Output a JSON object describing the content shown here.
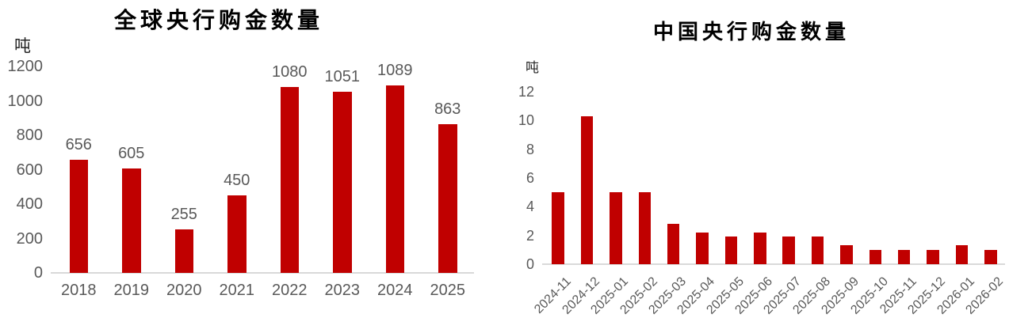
{
  "figure": {
    "background": "#ffffff",
    "bar_color": "#c00000",
    "axis_text_color": "#595959",
    "axis_line_color": "#d9d9d9"
  },
  "chart_data": [
    {
      "type": "bar",
      "title": "全球央行购金数量",
      "ylabel": "吨",
      "xlabel": "",
      "categories": [
        "2018",
        "2019",
        "2020",
        "2021",
        "2022",
        "2023",
        "2024",
        "2025"
      ],
      "values": [
        656,
        605,
        255,
        450,
        1080,
        1051,
        1089,
        863
      ],
      "ylim": [
        0,
        1200
      ],
      "yticks": [
        0,
        200,
        400,
        600,
        800,
        1000,
        1200
      ],
      "grid": false,
      "legend": "none",
      "bar_color": "#c00000",
      "show_value_labels": true,
      "x_label_rotation": 0
    },
    {
      "type": "bar",
      "title": "中国央行购金数量",
      "ylabel": "吨",
      "xlabel": "",
      "categories": [
        "2024-11",
        "2024-12",
        "2025-01",
        "2025-02",
        "2025-03",
        "2025-04",
        "2025-05",
        "2025-06",
        "2025-07",
        "2025-08",
        "2025-09",
        "2025-10",
        "2025-11",
        "2025-12",
        "2026-01",
        "2026-02"
      ],
      "values": [
        5.0,
        10.3,
        5.0,
        5.0,
        2.8,
        2.2,
        1.9,
        2.2,
        1.9,
        1.9,
        1.3,
        1.0,
        1.0,
        1.0,
        1.3,
        1.0
      ],
      "ylim": [
        0,
        12
      ],
      "yticks": [
        0,
        2,
        4,
        6,
        8,
        10,
        12
      ],
      "grid": false,
      "legend": "none",
      "bar_color": "#c00000",
      "show_value_labels": false,
      "x_label_rotation": -45
    }
  ]
}
